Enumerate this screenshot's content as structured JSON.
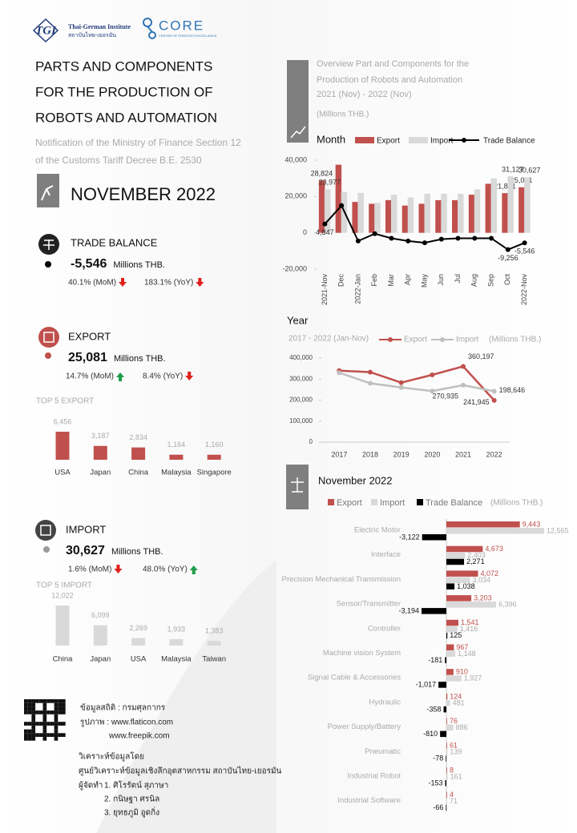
{
  "header": {
    "institute": "Thai-German Institute",
    "institute_thai": "สถาบันไทย-เยอรมัน",
    "logo_left": "TGI",
    "logo_right": "CORE",
    "logo_right_caption": "CENTER OF ROBOTICS EXCELLENCE",
    "title_lines": [
      "PARTS AND COMPONENTS",
      "FOR THE PRODUCTION OF",
      "ROBOTS AND AUTOMATION"
    ],
    "subtitle_lines": [
      "Notification of the Ministry of Finance Section 12",
      "of the Customs Tariff Decree B.E. 2530"
    ],
    "period": "NOVEMBER  2022"
  },
  "trade_balance": {
    "title": "TRADE BALANCE",
    "value": "-5,546",
    "unit": "Millions THB.",
    "mom": "40.1% (MoM)",
    "mom_trend": "down",
    "yoy": "183.1% (YoY)",
    "yoy_trend": "down"
  },
  "export": {
    "title": "EXPORT",
    "value": "25,081",
    "unit": "Millions THB.",
    "mom": "14.7% (MoM)",
    "mom_trend": "up",
    "yoy": "8.4% (YoY)",
    "yoy_trend": "down"
  },
  "import": {
    "title": "IMPORT",
    "value": "30,627",
    "unit": "Millions THB.",
    "mom": "1.6% (MoM)",
    "mom_trend": "down",
    "yoy": "48.0% (YoY)",
    "yoy_trend": "up"
  },
  "credits": {
    "lines": [
      "ข้อมูลสถิติ : กรมศุลกากร",
      "รูปภาพ : www.flaticon.com",
      "www.freepik.com"
    ],
    "analysis": "วิเคราะห์ข้อมูลโดย",
    "center": "ศูนย์วิเคราะห์ข้อมูลเชิงลึกอุตสาหกรรม สถาบันไทย-เยอรมัน",
    "authors_label": "ผู้จัดทำ",
    "authors": [
      "1. ศิโรรัตน์ สุภาษา",
      "2. กนิษฐา ศรนิล",
      "3. ยุทธภูมิ อูดกิ่ง"
    ]
  },
  "chart_data": [
    {
      "type": "combo",
      "title_lines": [
        "Overview Part and Components for the",
        "Production of Robots and Automation"
      ],
      "subtitle": "2021 (Nov) - 2022 (Nov)",
      "unit": "(Millions THB.)",
      "legend_title": "Month",
      "categories": [
        "2021-Nov",
        "Dec",
        "2022-Jan",
        "Feb",
        "Mar",
        "Apr",
        "May",
        "Jun",
        "Jul",
        "Aug",
        "Sep",
        "Oct",
        "2022-Nov"
      ],
      "ylim": [
        -20000,
        40000
      ],
      "yticks": [
        {
          "value": -20000,
          "label": "-20,000"
        },
        0,
        {
          "value": 20000,
          "label": "20,000"
        },
        {
          "value": 40000,
          "label": "40,000"
        }
      ],
      "series": [
        {
          "name": "Export",
          "type": "bar",
          "color": "#c0504d",
          "values": [
            28824,
            37500,
            17000,
            16000,
            18000,
            15000,
            16000,
            18000,
            18000,
            21000,
            27000,
            21871,
            25081
          ],
          "value_labels": [
            "28,824",
            null,
            null,
            null,
            null,
            null,
            null,
            null,
            null,
            null,
            null,
            "21,871",
            "25,081"
          ]
        },
        {
          "name": "Import",
          "type": "bar",
          "color": "#d9d9d9",
          "values": [
            23977,
            22500,
            22000,
            16500,
            21000,
            19500,
            21500,
            21500,
            21500,
            24000,
            30000,
            31127,
            30627
          ],
          "value_labels": [
            "23,977",
            null,
            null,
            null,
            null,
            null,
            null,
            null,
            null,
            null,
            null,
            "31,127",
            "30,627"
          ]
        },
        {
          "name": "Trade Balance",
          "type": "line",
          "color": "#000000",
          "values": [
            4847,
            15000,
            -4500,
            -500,
            -3000,
            -4500,
            -5500,
            -3500,
            -3000,
            -3000,
            -3000,
            -9256,
            -5546
          ],
          "value_labels": [
            "4,847",
            null,
            null,
            null,
            null,
            null,
            null,
            null,
            null,
            null,
            null,
            "-9,256",
            "-5,546"
          ]
        }
      ]
    },
    {
      "type": "line",
      "title": "Year",
      "subtitle": "2017 - 2022 (Jan-Nov)",
      "unit": "(Millions THB.)",
      "categories": [
        "2017",
        "2018",
        "2019",
        "2020",
        "2021",
        "2022"
      ],
      "ylim": [
        0,
        400000
      ],
      "yticks": [
        0,
        {
          "value": 100000,
          "label": "100,000"
        },
        {
          "value": 200000,
          "label": "200,000"
        },
        {
          "value": 300000,
          "label": "300,000"
        },
        {
          "value": 400000,
          "label": "400,000"
        }
      ],
      "series": [
        {
          "name": "Export",
          "color": "#c0504d",
          "values": [
            340000,
            333000,
            283000,
            320000,
            360197,
            198646
          ],
          "value_labels": [
            null,
            null,
            null,
            null,
            "360,197",
            "198,646"
          ]
        },
        {
          "name": "Import",
          "color": "#bfbfbf",
          "values": [
            330000,
            280000,
            260000,
            243000,
            270935,
            241945
          ],
          "value_labels": [
            null,
            null,
            null,
            null,
            "270,935",
            "241,945"
          ]
        }
      ]
    },
    {
      "type": "hbar",
      "title": "November 2022",
      "unit": "(Millions THB.)",
      "categories": [
        "Electric Motor",
        "Interface",
        "Precision Mechanical Transmission",
        "Sensor/Transmitter",
        "Controller",
        "Machine vision System",
        "Signal Cable & Accessories",
        "Hydraulic",
        "Power Supply/Battery",
        "Pneumatic",
        "Industrial Robot",
        "Industrial Software"
      ],
      "series": [
        {
          "name": "Export",
          "color": "#c0504d",
          "values": [
            9443,
            4673,
            4072,
            3203,
            1541,
            967,
            910,
            124,
            76,
            61,
            8,
            4
          ],
          "value_labels": [
            "9,443",
            "4,673",
            "4,072",
            "3,203",
            "1,541",
            "967",
            "910",
            "124",
            "76",
            "61",
            "8",
            "4"
          ]
        },
        {
          "name": "Import",
          "color": "#d9d9d9",
          "values": [
            12565,
            2403,
            3034,
            6396,
            1416,
            1148,
            1927,
            481,
            886,
            139,
            161,
            71
          ],
          "value_labels": [
            "12,565",
            "2,403",
            "3,034",
            "6,396",
            "1,416",
            "1,148",
            "1,927",
            "481",
            "886",
            "139",
            "161",
            "71"
          ]
        },
        {
          "name": "Trade Balance",
          "color": "#000000",
          "values": [
            -3122,
            2271,
            1038,
            -3194,
            125,
            -181,
            -1017,
            -358,
            -810,
            -78,
            -153,
            -66
          ],
          "value_labels": [
            "-3,122",
            "2,271",
            "1,038",
            "-3,194",
            "125",
            "-181",
            "-1,017",
            "-358",
            "-810",
            "-78",
            "-153",
            "-66"
          ]
        }
      ]
    },
    {
      "type": "bar",
      "title": "TOP 5 EXPORT",
      "color": "#c0504d",
      "categories": [
        "USA",
        "Japan",
        "China",
        "Malaysia",
        "Singapore"
      ],
      "values": [
        6456,
        3187,
        2834,
        1164,
        1160
      ],
      "value_labels": [
        "6,456",
        "3,187",
        "2,834",
        "1,164",
        "1,160"
      ]
    },
    {
      "type": "bar",
      "title": "TOP 5 IMPORT",
      "color": "#d9d9d9",
      "categories": [
        "China",
        "Japan",
        "USA",
        "Malaysia",
        "Taiwan"
      ],
      "values": [
        12022,
        6099,
        2269,
        1933,
        1383
      ],
      "value_labels": [
        "12,022",
        "6,099",
        "2,269",
        "1,933",
        "1,383"
      ]
    }
  ]
}
